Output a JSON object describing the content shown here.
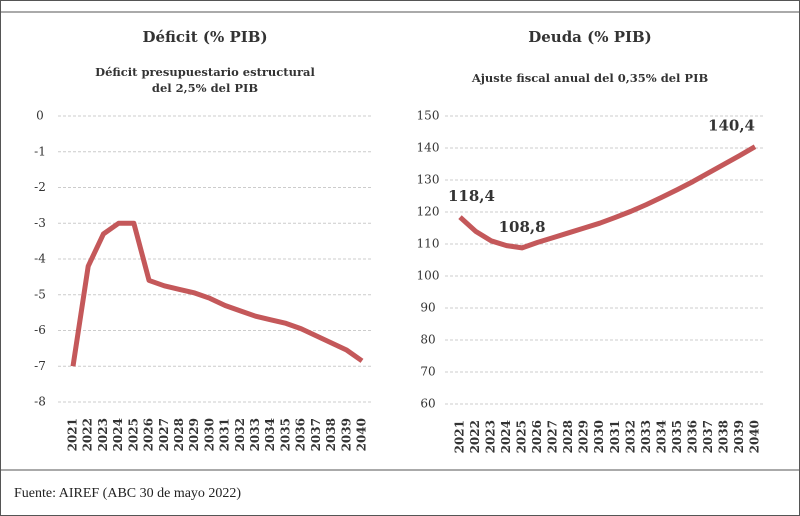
{
  "chart_data": [
    {
      "type": "line",
      "title": "Déficit (% PIB)",
      "subtitle": [
        "Déficit presupuestario estructural",
        "del 2,5% del PIB"
      ],
      "categories": [
        "2021",
        "2022",
        "2023",
        "2024",
        "2025",
        "2026",
        "2027",
        "2028",
        "2029",
        "2030",
        "2031",
        "2032",
        "2033",
        "2034",
        "2035",
        "2036",
        "2037",
        "2038",
        "2039",
        "2040"
      ],
      "values": [
        -7,
        -4.2,
        -3.3,
        -3.0,
        -3.0,
        -4.6,
        -4.75,
        -4.85,
        -4.95,
        -5.1,
        -5.3,
        -5.45,
        -5.6,
        -5.7,
        -5.8,
        -5.95,
        -6.15,
        -6.35,
        -6.55,
        -6.85
      ],
      "color": "#c4585a",
      "ylim": [
        -8,
        0
      ],
      "yticks": [
        0,
        -1,
        -2,
        -3,
        -4,
        -5,
        -6,
        -7,
        -8
      ],
      "grid": true
    },
    {
      "type": "line",
      "title": "Deuda (% PIB)",
      "subtitle": [
        "Ajuste fiscal anual del 0,35% del PIB"
      ],
      "categories": [
        "2021",
        "2022",
        "2023",
        "2024",
        "2025",
        "2026",
        "2027",
        "2028",
        "2029",
        "2030",
        "2031",
        "2032",
        "2033",
        "2034",
        "2035",
        "2036",
        "2037",
        "2038",
        "2039",
        "2040"
      ],
      "values": [
        118.4,
        114,
        111,
        109.5,
        108.8,
        110.5,
        112,
        113.5,
        115,
        116.5,
        118.3,
        120.2,
        122.3,
        124.6,
        127,
        129.5,
        132.2,
        134.9,
        137.6,
        140.4
      ],
      "value_labels": [
        "118,4",
        null,
        null,
        null,
        "108,8",
        null,
        null,
        null,
        null,
        null,
        null,
        null,
        null,
        null,
        null,
        null,
        null,
        null,
        null,
        "140,4"
      ],
      "color": "#c4585a",
      "ylim": [
        60,
        150
      ],
      "yticks": [
        150,
        140,
        130,
        120,
        110,
        100,
        90,
        80,
        70,
        60
      ],
      "grid": true
    }
  ],
  "source": "Fuente: AIREF (ABC 30 de mayo 2022)"
}
